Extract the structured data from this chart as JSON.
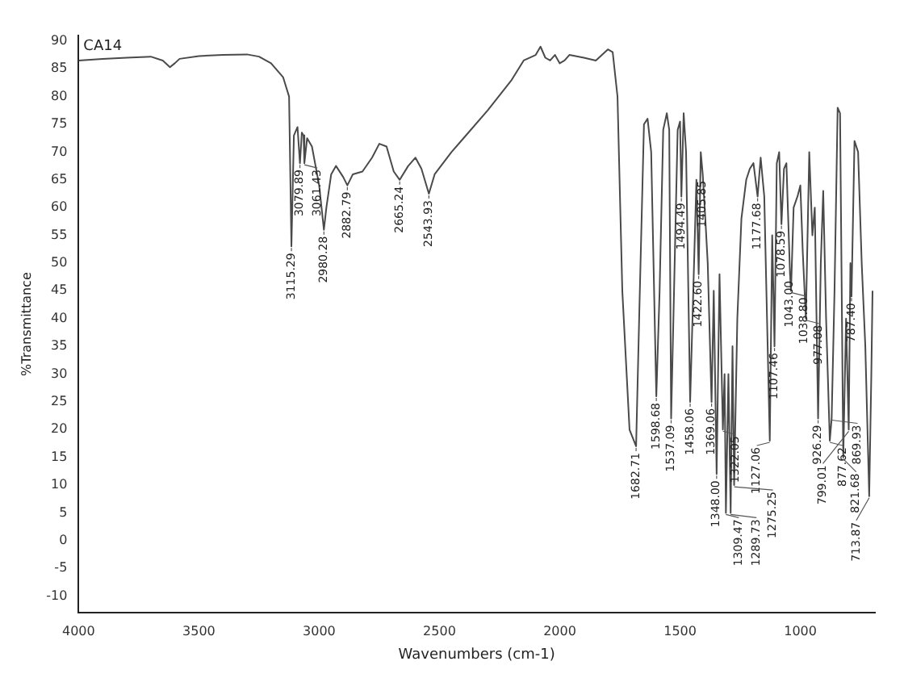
{
  "chart_data": {
    "type": "line",
    "xlabel": "Wavenumbers (cm-1)",
    "ylabel": "%Transmittance",
    "xlim": [
      4000,
      690
    ],
    "xticks": [
      4000,
      3500,
      3000,
      2500,
      2000,
      1500,
      1000
    ],
    "ylim": [
      -13,
      91
    ],
    "yticks": [
      -10,
      -5,
      0,
      5,
      10,
      15,
      20,
      25,
      30,
      35,
      40,
      45,
      50,
      55,
      60,
      65,
      70,
      75,
      80,
      85,
      90
    ],
    "grid": false,
    "legend": false,
    "marker": "none",
    "line_style": "solid",
    "x": [
      4000,
      3900,
      3800,
      3700,
      3650,
      3620,
      3600,
      3580,
      3500,
      3400,
      3300,
      3250,
      3200,
      3150,
      3125,
      3115.29,
      3105,
      3090,
      3079.89,
      3072,
      3065,
      3061.43,
      3050,
      3030,
      3000,
      2980.28,
      2970,
      2950,
      2930,
      2900,
      2882.79,
      2860,
      2820,
      2780,
      2750,
      2720,
      2690,
      2665.24,
      2630,
      2600,
      2575,
      2543.93,
      2520,
      2450,
      2400,
      2300,
      2200,
      2150,
      2100,
      2080,
      2060,
      2040,
      2020,
      2000,
      1980,
      1960,
      1900,
      1850,
      1800,
      1780,
      1760,
      1740,
      1710,
      1682.71,
      1670,
      1650,
      1635,
      1620,
      1598.68,
      1585,
      1570,
      1555,
      1545,
      1537.09,
      1525,
      1510,
      1500,
      1494.49,
      1485,
      1475,
      1458.06,
      1445,
      1432,
      1422.6,
      1414,
      1405.85,
      1395,
      1385,
      1369.06,
      1360,
      1348,
      1336,
      1322.05,
      1315,
      1309.47,
      1299,
      1289.73,
      1282,
      1275.25,
      1262,
      1245,
      1225,
      1210,
      1195,
      1177.68,
      1165,
      1150,
      1127.06,
      1117,
      1107.46,
      1098,
      1088,
      1078.59,
      1068,
      1058,
      1043,
      1038.8,
      1028,
      1012,
      1000,
      990,
      977.08,
      963,
      950,
      940,
      926.29,
      915,
      905,
      893,
      877.62,
      869.93,
      858,
      845,
      835,
      821.68,
      810,
      799.01,
      792,
      787.4,
      775,
      760,
      745,
      730,
      713.87,
      705,
      700
    ],
    "series": [
      {
        "color": "#4a4a4a",
        "values": [
          86.5,
          86.8,
          87,
          87.2,
          86.5,
          85.3,
          86,
          86.8,
          87.3,
          87.5,
          87.6,
          87.2,
          86,
          83.5,
          80,
          53,
          73,
          74.5,
          68,
          73.5,
          73,
          68,
          72.5,
          71,
          64,
          56,
          60,
          66,
          67.5,
          65.5,
          64,
          66,
          66.5,
          69,
          71.5,
          71,
          66.5,
          65,
          67.5,
          69,
          67,
          62.5,
          66,
          70,
          72.5,
          77.5,
          83,
          86.5,
          87.5,
          89,
          87,
          86.5,
          87.5,
          86,
          86.5,
          87.5,
          87,
          86.5,
          88.5,
          88,
          80,
          45,
          20,
          17,
          40,
          75,
          76,
          70,
          26,
          45,
          74,
          77,
          74,
          22,
          45,
          74,
          75.5,
          62,
          77,
          70,
          25,
          45,
          65,
          48,
          70,
          66,
          58,
          50,
          25,
          45,
          12,
          48,
          20,
          30,
          5,
          30,
          5,
          35,
          10,
          40,
          58,
          65,
          67,
          68,
          62,
          69,
          62,
          18,
          55,
          35,
          68,
          70,
          57,
          67,
          68,
          48,
          45,
          60,
          62,
          64,
          52,
          40,
          70,
          55,
          60,
          22,
          50,
          63,
          40,
          18,
          22,
          45,
          78,
          77,
          15,
          40,
          20,
          50,
          44,
          72,
          70,
          50,
          35,
          8,
          30,
          45
        ]
      }
    ],
    "annotations": [
      "CA14",
      {
        "text": "3115.29",
        "x": 3115.29,
        "y": 53
      },
      {
        "text": "3079.89",
        "x": 3079.89,
        "y": 68
      },
      {
        "text": "3061.43",
        "x": 3061.43,
        "y": 68
      },
      {
        "text": "2980.28",
        "x": 2980.28,
        "y": 56
      },
      {
        "text": "2882.79",
        "x": 2882.79,
        "y": 64
      },
      {
        "text": "2665.24",
        "x": 2665.24,
        "y": 65
      },
      {
        "text": "2543.93",
        "x": 2543.93,
        "y": 62.5
      },
      {
        "text": "1682.71",
        "x": 1682.71,
        "y": 17
      },
      {
        "text": "1598.68",
        "x": 1598.68,
        "y": 26
      },
      {
        "text": "1537.09",
        "x": 1537.09,
        "y": 22
      },
      {
        "text": "1494.49",
        "x": 1494.49,
        "y": 62
      },
      {
        "text": "1458.06",
        "x": 1458.06,
        "y": 25
      },
      {
        "text": "1422.60",
        "x": 1422.6,
        "y": 48
      },
      {
        "text": "1405.85",
        "x": 1405.85,
        "y": 66
      },
      {
        "text": "1369.06",
        "x": 1369.06,
        "y": 25
      },
      {
        "text": "1348.00",
        "x": 1348,
        "y": 12
      },
      {
        "text": "1322.05",
        "x": 1322.05,
        "y": 20
      },
      {
        "text": "1309.47",
        "x": 1309.47,
        "y": 5
      },
      {
        "text": "1289.73",
        "x": 1289.73,
        "y": 5
      },
      {
        "text": "1275.25",
        "x": 1275.25,
        "y": 10
      },
      {
        "text": "1177.68",
        "x": 1177.68,
        "y": 62
      },
      {
        "text": "1127.06",
        "x": 1127.06,
        "y": 18
      },
      {
        "text": "1107.46",
        "x": 1107.46,
        "y": 35
      },
      {
        "text": "1078.59",
        "x": 1078.59,
        "y": 57
      },
      {
        "text": "1043.00",
        "x": 1043,
        "y": 48
      },
      {
        "text": "1038.80",
        "x": 1038.8,
        "y": 45
      },
      {
        "text": "977.08",
        "x": 977.08,
        "y": 40
      },
      {
        "text": "926.29",
        "x": 926.29,
        "y": 22
      },
      {
        "text": "877.62",
        "x": 877.62,
        "y": 18
      },
      {
        "text": "869.93",
        "x": 869.93,
        "y": 22
      },
      {
        "text": "821.68",
        "x": 821.68,
        "y": 15
      },
      {
        "text": "799.01",
        "x": 799.01,
        "y": 20
      },
      {
        "text": "787.40",
        "x": 787.4,
        "y": 44
      },
      {
        "text": "713.87",
        "x": 713.87,
        "y": 8
      }
    ]
  }
}
